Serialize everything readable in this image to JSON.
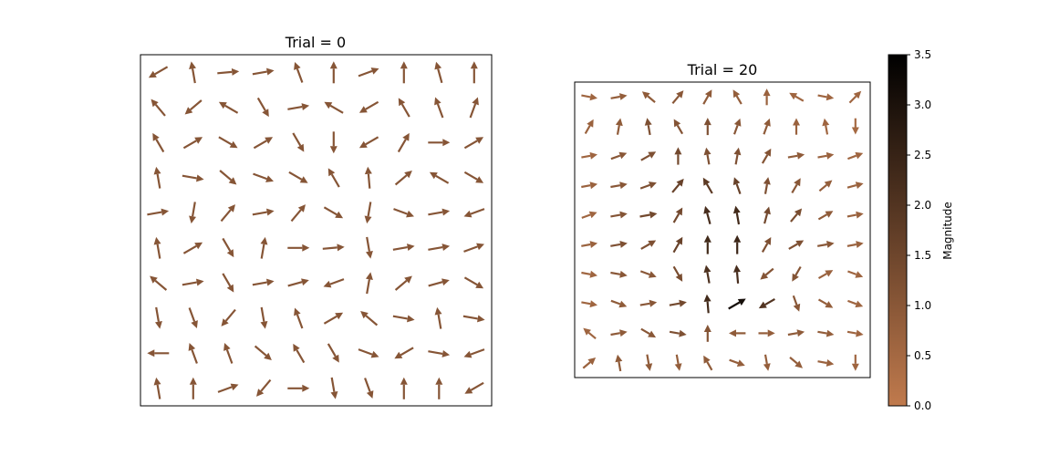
{
  "chart_data": [
    {
      "type": "quiver",
      "title": "Trial = 0",
      "description_of_field": "random unit-length arrows on a 10x10 grid",
      "grid": {
        "nx": 10,
        "ny": 10,
        "xlim": [
          0,
          10
        ],
        "ylim": [
          0,
          10
        ]
      },
      "angles_deg": [
        210,
        100,
        5,
        10,
        110,
        90,
        20,
        90,
        105,
        90,
        130,
        220,
        150,
        300,
        10,
        150,
        210,
        120,
        110,
        70,
        120,
        30,
        330,
        30,
        300,
        270,
        210,
        60,
        0,
        30,
        100,
        350,
        320,
        340,
        330,
        120,
        95,
        40,
        150,
        330,
        10,
        260,
        50,
        10,
        50,
        330,
        260,
        340,
        10,
        200,
        100,
        30,
        300,
        80,
        0,
        5,
        280,
        10,
        10,
        20,
        140,
        10,
        300,
        10,
        15,
        200,
        80,
        40,
        15,
        330,
        280,
        290,
        230,
        280,
        110,
        30,
        140,
        350,
        100,
        350,
        180,
        110,
        110,
        320,
        120,
        300,
        340,
        210,
        350,
        200,
        100,
        90,
        20,
        230,
        0,
        280,
        290,
        90,
        90,
        210
      ],
      "magnitudes": [
        1,
        1,
        1,
        1,
        1,
        1,
        1,
        1,
        1,
        1,
        1,
        1,
        1,
        1,
        1,
        1,
        1,
        1,
        1,
        1,
        1,
        1,
        1,
        1,
        1,
        1,
        1,
        1,
        1,
        1,
        1,
        1,
        1,
        1,
        1,
        1,
        1,
        1,
        1,
        1,
        1,
        1,
        1,
        1,
        1,
        1,
        1,
        1,
        1,
        1,
        1,
        1,
        1,
        1,
        1,
        1,
        1,
        1,
        1,
        1,
        1,
        1,
        1,
        1,
        1,
        1,
        1,
        1,
        1,
        1,
        1,
        1,
        1,
        1,
        1,
        1,
        1,
        1,
        1,
        1,
        1,
        1,
        1,
        1,
        1,
        1,
        1,
        1,
        1,
        1,
        1,
        1,
        1,
        1,
        1,
        1,
        1,
        1,
        1,
        1
      ]
    },
    {
      "type": "quiver",
      "title": "Trial = 20",
      "description_of_field": "smoothed field converging upward toward a center column",
      "grid": {
        "nx": 10,
        "ny": 10,
        "xlim": [
          0,
          10
        ],
        "ylim": [
          0,
          10
        ]
      },
      "angles_deg": [
        350,
        10,
        140,
        50,
        60,
        120,
        90,
        150,
        350,
        45,
        60,
        80,
        100,
        120,
        90,
        70,
        70,
        90,
        100,
        270,
        10,
        20,
        30,
        90,
        100,
        80,
        60,
        10,
        10,
        20,
        10,
        10,
        20,
        50,
        120,
        110,
        80,
        60,
        40,
        15,
        20,
        10,
        10,
        60,
        105,
        100,
        75,
        50,
        30,
        10,
        10,
        10,
        30,
        60,
        90,
        90,
        60,
        30,
        10,
        10,
        350,
        350,
        340,
        300,
        100,
        95,
        220,
        240,
        30,
        340,
        350,
        340,
        10,
        10,
        95,
        30,
        210,
        290,
        330,
        340,
        140,
        10,
        330,
        350,
        90,
        180,
        0,
        10,
        350,
        350,
        40,
        100,
        280,
        280,
        120,
        340,
        280,
        320,
        350,
        270
      ],
      "magnitudes": [
        0.6,
        0.8,
        0.9,
        1.0,
        0.9,
        0.8,
        0.7,
        0.6,
        0.6,
        0.6,
        0.7,
        0.9,
        1.2,
        1.1,
        1.2,
        1.0,
        0.9,
        0.7,
        0.6,
        0.5,
        0.6,
        1.0,
        1.2,
        1.4,
        1.2,
        1.2,
        1.1,
        0.9,
        0.7,
        0.6,
        0.7,
        1.0,
        1.2,
        1.6,
        1.8,
        1.6,
        1.2,
        1.0,
        0.8,
        0.7,
        0.6,
        1.1,
        1.4,
        1.4,
        2.2,
        2.3,
        1.4,
        1.3,
        0.9,
        0.7,
        0.7,
        1.2,
        1.2,
        1.6,
        2.3,
        2.4,
        1.2,
        1.2,
        1.0,
        0.7,
        0.6,
        1.0,
        1.0,
        1.3,
        2.1,
        2.2,
        1.1,
        1.1,
        0.7,
        0.6,
        0.6,
        0.9,
        1.0,
        1.4,
        2.3,
        3.1,
        2.0,
        1.0,
        0.8,
        0.6,
        0.6,
        0.9,
        1.0,
        1.2,
        1.1,
        0.9,
        0.8,
        0.9,
        0.8,
        0.6,
        0.7,
        0.9,
        0.9,
        0.8,
        0.9,
        0.8,
        0.8,
        0.8,
        0.7,
        0.6
      ]
    }
  ],
  "colorbar": {
    "label": "Magnitude",
    "range": [
      0.0,
      3.5
    ],
    "ticks": [
      "0.0",
      "0.5",
      "1.0",
      "1.5",
      "2.0",
      "2.5",
      "3.0",
      "3.5"
    ],
    "colormap": "copper",
    "color_low": "#c07a4d",
    "color_high": "#000000"
  }
}
